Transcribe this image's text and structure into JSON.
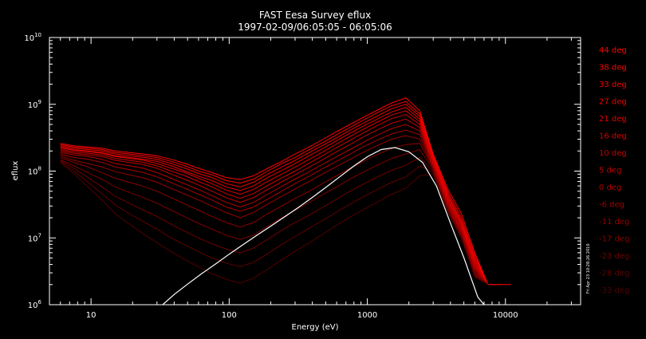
{
  "chart_data": {
    "type": "line",
    "title": "FAST  Eesa Survey eflux",
    "subtitle": "1997-02-09/06:05:05 - 06:05:06",
    "xlabel": "Energy  (eV)",
    "ylabel": "eflux",
    "xscale": "log",
    "yscale": "log",
    "xlim": [
      5,
      35000
    ],
    "ylim": [
      1000000,
      10000000000
    ],
    "grid": false,
    "legend_position": "right",
    "x_ticks": [
      {
        "value": 10,
        "label": "10"
      },
      {
        "value": 100,
        "label": "100"
      },
      {
        "value": 1000,
        "label": "1000"
      },
      {
        "value": 10000,
        "label": "10000"
      }
    ],
    "y_ticks": [
      {
        "value": 1000000,
        "base": "10",
        "exp": "6"
      },
      {
        "value": 10000000,
        "base": "10",
        "exp": "7"
      },
      {
        "value": 100000000,
        "base": "10",
        "exp": "8"
      },
      {
        "value": 1000000000,
        "base": "10",
        "exp": "9"
      },
      {
        "value": 10000000000,
        "base": "10",
        "exp": "10"
      }
    ],
    "energies": [
      6,
      7.5,
      9.5,
      12,
      15,
      19,
      24,
      30,
      38,
      48,
      60,
      75,
      95,
      120,
      150,
      190,
      240,
      300,
      380,
      480,
      600,
      750,
      950,
      1200,
      1500,
      1900,
      2400,
      3000,
      3800,
      4800,
      6000,
      7500,
      9500,
      11000
    ],
    "series": [
      {
        "name": "44 deg",
        "color": "#ff0000",
        "values": [
          260000000.0,
          240000000.0,
          230000000.0,
          220000000.0,
          200000000.0,
          190000000.0,
          180000000.0,
          170000000.0,
          150000000.0,
          130000000.0,
          110000000.0,
          95000000.0,
          80000000.0,
          75000000.0,
          85000000.0,
          110000000.0,
          140000000.0,
          180000000.0,
          230000000.0,
          300000000.0,
          390000000.0,
          500000000.0,
          650000000.0,
          830000000.0,
          1050000000.0,
          1250000000.0,
          800000000.0,
          180000000.0,
          55000000.0,
          23000000.0,
          6000000.0,
          2000000.0,
          2000000.0,
          2000000.0
        ]
      },
      {
        "name": "38 deg",
        "color": "#fa0000",
        "values": [
          250000000.0,
          230000000.0,
          220000000.0,
          210000000.0,
          190000000.0,
          180000000.0,
          170000000.0,
          160000000.0,
          140000000.0,
          120000000.0,
          100000000.0,
          88000000.0,
          72000000.0,
          66000000.0,
          76000000.0,
          100000000.0,
          130000000.0,
          160000000.0,
          210000000.0,
          270000000.0,
          350000000.0,
          450000000.0,
          590000000.0,
          760000000.0,
          950000000.0,
          1100000000.0,
          720000000.0,
          170000000.0,
          50000000.0,
          20000000.0,
          5500000.0,
          2000000.0,
          2000000.0,
          null
        ]
      },
      {
        "name": "33 deg",
        "color": "#f20000",
        "values": [
          240000000.0,
          220000000.0,
          210000000.0,
          200000000.0,
          180000000.0,
          170000000.0,
          160000000.0,
          150000000.0,
          130000000.0,
          110000000.0,
          92000000.0,
          80000000.0,
          65000000.0,
          58000000.0,
          68000000.0,
          90000000.0,
          115000000.0,
          145000000.0,
          190000000.0,
          245000000.0,
          315000000.0,
          410000000.0,
          530000000.0,
          680000000.0,
          860000000.0,
          1000000000.0,
          660000000.0,
          160000000.0,
          46000000.0,
          18000000.0,
          5000000.0,
          2000000.0,
          null,
          null
        ]
      },
      {
        "name": "27 deg",
        "color": "#eb0000",
        "values": [
          230000000.0,
          210000000.0,
          200000000.0,
          190000000.0,
          170000000.0,
          160000000.0,
          150000000.0,
          140000000.0,
          120000000.0,
          100000000.0,
          84000000.0,
          72000000.0,
          58000000.0,
          51000000.0,
          60000000.0,
          80000000.0,
          102000000.0,
          130000000.0,
          170000000.0,
          220000000.0,
          285000000.0,
          370000000.0,
          480000000.0,
          610000000.0,
          770000000.0,
          900000000.0,
          600000000.0,
          150000000.0,
          43000000.0,
          17000000.0,
          4600000.0,
          2000000.0,
          null,
          null
        ]
      },
      {
        "name": "21 deg",
        "color": "#e00000",
        "values": [
          220000000.0,
          205000000.0,
          195000000.0,
          185000000.0,
          165000000.0,
          155000000.0,
          145000000.0,
          130000000.0,
          110000000.0,
          95000000.0,
          78000000.0,
          65000000.0,
          52000000.0,
          45000000.0,
          53000000.0,
          70000000.0,
          90000000.0,
          115000000.0,
          150000000.0,
          195000000.0,
          255000000.0,
          330000000.0,
          430000000.0,
          550000000.0,
          690000000.0,
          800000000.0,
          550000000.0,
          140000000.0,
          40000000.0,
          16000000.0,
          4300000.0,
          2000000.0,
          null,
          null
        ]
      },
      {
        "name": "16 deg",
        "color": "#d40000",
        "values": [
          210000000.0,
          195000000.0,
          185000000.0,
          175000000.0,
          155000000.0,
          145000000.0,
          135000000.0,
          120000000.0,
          100000000.0,
          85000000.0,
          70000000.0,
          58000000.0,
          46000000.0,
          39000000.0,
          46000000.0,
          61000000.0,
          79000000.0,
          100000000.0,
          132000000.0,
          172000000.0,
          225000000.0,
          290000000.0,
          380000000.0,
          490000000.0,
          610000000.0,
          700000000.0,
          500000000.0,
          135000000.0,
          38000000.0,
          15000000.0,
          4000000.0,
          2000000.0,
          null,
          null
        ]
      },
      {
        "name": "10 deg",
        "color": "#c80000",
        "values": [
          200000000.0,
          185000000.0,
          175000000.0,
          165000000.0,
          145000000.0,
          135000000.0,
          125000000.0,
          110000000.0,
          90000000.0,
          75000000.0,
          62000000.0,
          50000000.0,
          40000000.0,
          34000000.0,
          40000000.0,
          53000000.0,
          69000000.0,
          88000000.0,
          115000000.0,
          150000000.0,
          195000000.0,
          250000000.0,
          330000000.0,
          420000000.0,
          520000000.0,
          600000000.0,
          450000000.0,
          130000000.0,
          36000000.0,
          14000000.0,
          3800000.0,
          2000000.0,
          null,
          null
        ]
      },
      {
        "name": "5 deg",
        "color": "#bb0000",
        "values": [
          190000000.0,
          175000000.0,
          165000000.0,
          150000000.0,
          130000000.0,
          120000000.0,
          110000000.0,
          95000000.0,
          78000000.0,
          64000000.0,
          53000000.0,
          43000000.0,
          34000000.0,
          29000000.0,
          34000000.0,
          45000000.0,
          59000000.0,
          76000000.0,
          98000000.0,
          128000000.0,
          165000000.0,
          210000000.0,
          275000000.0,
          350000000.0,
          430000000.0,
          500000000.0,
          400000000.0,
          125000000.0,
          34000000.0,
          13000000.0,
          3600000.0,
          2000000.0,
          null,
          null
        ]
      },
      {
        "name": "0 deg",
        "color": "#ad0000",
        "values": [
          180000000.0,
          160000000.0,
          150000000.0,
          135000000.0,
          115000000.0,
          105000000.0,
          95000000.0,
          82000000.0,
          67000000.0,
          55000000.0,
          45000000.0,
          37000000.0,
          29000000.0,
          25000000.0,
          29000000.0,
          38000000.0,
          50000000.0,
          65000000.0,
          84000000.0,
          110000000.0,
          140000000.0,
          180000000.0,
          235000000.0,
          295000000.0,
          360000000.0,
          410000000.0,
          350000000.0,
          120000000.0,
          32000000.0,
          12500000.0,
          3400000.0,
          2000000.0,
          null,
          null
        ]
      },
      {
        "name": "-6 deg",
        "color": "#9e0000",
        "values": [
          170000000.0,
          145000000.0,
          130000000.0,
          115000000.0,
          98000000.0,
          88000000.0,
          79000000.0,
          68000000.0,
          55000000.0,
          45000000.0,
          37000000.0,
          30000000.0,
          24000000.0,
          20000000.0,
          24000000.0,
          32000000.0,
          42000000.0,
          54000000.0,
          70000000.0,
          92000000.0,
          117000000.0,
          150000000.0,
          195000000.0,
          245000000.0,
          300000000.0,
          340000000.0,
          300000000.0,
          115000000.0,
          30000000.0,
          12000000.0,
          3200000.0,
          2000000.0,
          null,
          null
        ]
      },
      {
        "name": "-11 deg",
        "color": "#8f0000",
        "values": [
          160000000.0,
          135000000.0,
          115000000.0,
          95000000.0,
          78000000.0,
          68000000.0,
          59000000.0,
          50000000.0,
          40000000.0,
          32000000.0,
          26000000.0,
          21000000.0,
          17000000.0,
          14500000.0,
          17000000.0,
          23000000.0,
          30000000.0,
          39000000.0,
          50000000.0,
          66000000.0,
          85000000.0,
          110000000.0,
          142000000.0,
          180000000.0,
          220000000.0,
          250000000.0,
          260000000.0,
          110000000.0,
          29000000.0,
          11500000.0,
          3000000.0,
          2000000.0,
          null,
          null
        ]
      },
      {
        "name": "-17 deg",
        "color": "#800000",
        "values": [
          150000000.0,
          120000000.0,
          95000000.0,
          75000000.0,
          58000000.0,
          48000000.0,
          40000000.0,
          33000000.0,
          26000000.0,
          20500000.0,
          16500000.0,
          13500000.0,
          11000000.0,
          9500000.0,
          11000000.0,
          15000000.0,
          20000000.0,
          26000000.0,
          34000000.0,
          45000000.0,
          58000000.0,
          76000000.0,
          98000000.0,
          125000000.0,
          155000000.0,
          180000000.0,
          210000000.0,
          105000000.0,
          28000000.0,
          11000000.0,
          2900000.0,
          2000000.0,
          null,
          null
        ]
      },
      {
        "name": "-23 deg",
        "color": "#710000",
        "values": [
          145000000.0,
          110000000.0,
          80000000.0,
          58000000.0,
          42000000.0,
          33000000.0,
          26000000.0,
          21000000.0,
          16000000.0,
          12500000.0,
          10000000.0,
          8200000.0,
          6800000.0,
          6000000.0,
          7000000.0,
          9500000.0,
          13000000.0,
          17000000.0,
          22000000.0,
          29000000.0,
          38000000.0,
          50000000.0,
          65000000.0,
          83000000.0,
          103000000.0,
          122000000.0,
          160000000.0,
          100000000.0,
          27000000.0,
          10500000.0,
          2800000.0,
          2000000.0,
          null,
          null
        ]
      },
      {
        "name": "-28 deg",
        "color": "#620000",
        "values": [
          140000000.0,
          100000000.0,
          68000000.0,
          46000000.0,
          31000000.0,
          23000000.0,
          17500000.0,
          13500000.0,
          10000000.0,
          7800000.0,
          6200000.0,
          5000000.0,
          4200000.0,
          3700000.0,
          4300000.0,
          5800000.0,
          8000000.0,
          10500000.0,
          14000000.0,
          18500000.0,
          24500000.0,
          32000000.0,
          42000000.0,
          54000000.0,
          68000000.0,
          82000000.0,
          120000000.0,
          95000000.0,
          26000000.0,
          10000000.0,
          2700000.0,
          2000000.0,
          null,
          null
        ]
      },
      {
        "name": "-33 deg",
        "color": "#530000",
        "values": [
          135000000.0,
          92000000.0,
          58000000.0,
          37000000.0,
          23000000.0,
          16000000.0,
          11500000.0,
          8500000.0,
          6200000.0,
          4700000.0,
          3700000.0,
          2900000.0,
          2400000.0,
          2100000.0,
          2500000.0,
          3400000.0,
          4700000.0,
          6300000.0,
          8500000.0,
          11500000.0,
          15500000.0,
          20500000.0,
          27000000.0,
          35000000.0,
          45000000.0,
          55000000.0,
          85000000.0,
          90000000.0,
          25000000.0,
          9800000.0,
          2600000.0,
          2000000.0,
          null,
          null
        ]
      }
    ],
    "fit_curve": {
      "color": "#ffffff",
      "x": [
        33,
        40,
        50,
        63,
        80,
        100,
        126,
        158,
        200,
        251,
        316,
        398,
        501,
        631,
        794,
        1000,
        1259,
        1585,
        1995,
        2512,
        3162,
        3981,
        5012,
        6310,
        7000
      ],
      "y": [
        1000000.0,
        1420000.0,
        2030000.0,
        2900000.0,
        4090000.0,
        5700000.0,
        7900000.0,
        10900000.0,
        15000000.0,
        20600000.0,
        28500000.0,
        40000000.0,
        57000000.0,
        82000000.0,
        118000000.0,
        164000000.0,
        210000000.0,
        225000000.0,
        195000000.0,
        135000000.0,
        60000000.0,
        17000000.0,
        5000000.0,
        1300000.0,
        1000000.0
      ]
    }
  },
  "stamp": "Fri Apr 23 10:28:26 2010"
}
